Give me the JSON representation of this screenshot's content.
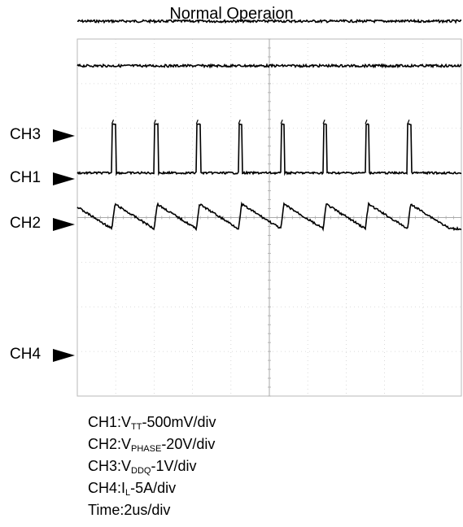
{
  "chart_data": {
    "type": "line",
    "title": "Normal Operaion",
    "grid": true,
    "x_divisions": 10,
    "y_divisions": 8,
    "time_per_div": "2us/div",
    "channel_markers": [
      "CH3",
      "CH1",
      "CH2",
      "CH4"
    ],
    "series": [
      {
        "name": "CH1",
        "kind": "flat-noisy",
        "level_div": 8.4
      },
      {
        "name": "CH3",
        "kind": "flat-noisy",
        "level_div": 7.4
      },
      {
        "name": "CH2",
        "kind": "pulse-train",
        "base_div": 5.0,
        "high_div": 6.1,
        "period_div": 1.1,
        "pulse_starts_div": [
          0.9,
          2.0,
          3.1,
          4.2,
          5.3,
          6.4,
          7.5,
          8.6
        ]
      },
      {
        "name": "CH4",
        "kind": "sawtooth",
        "valley_div": 3.75,
        "peak_div": 4.3,
        "period_div": 1.1,
        "rise_points_div": [
          0.9,
          2.0,
          3.1,
          4.2,
          5.3,
          6.4,
          7.5,
          8.6
        ]
      }
    ],
    "legend": [
      {
        "prefix": "CH1:V",
        "sub": "TT",
        "suffix": "-500mV/div"
      },
      {
        "prefix": "CH2:V",
        "sub": "PHASE",
        "suffix": "-20V/div"
      },
      {
        "prefix": "CH3:V",
        "sub": "DDQ",
        "suffix": "-1V/div"
      },
      {
        "prefix": "CH4:I",
        "sub": "L",
        "suffix": "-5A/div"
      },
      {
        "prefix": "Time:2us/div",
        "sub": "",
        "suffix": ""
      }
    ]
  }
}
